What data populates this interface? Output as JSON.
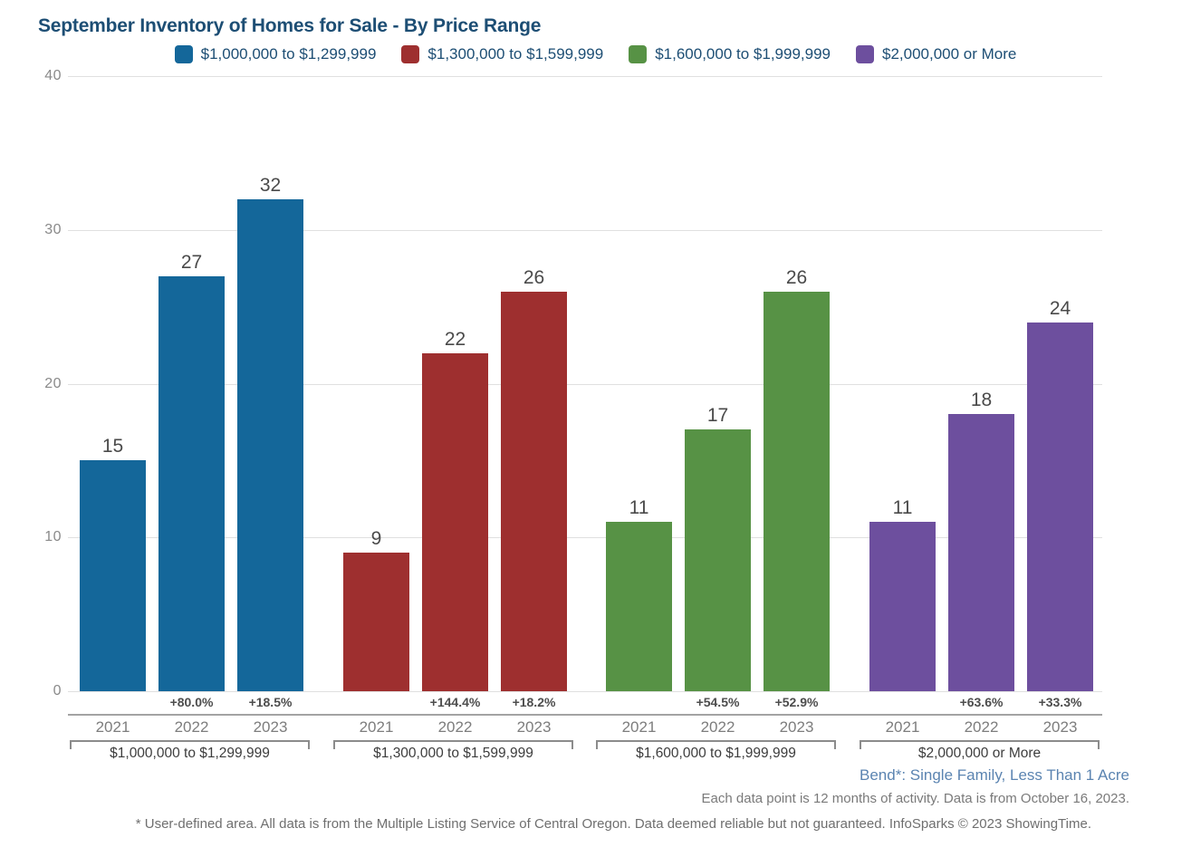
{
  "chart_data": {
    "type": "bar",
    "title": "September Inventory of Homes for Sale - By Price Range",
    "xlabel": "",
    "ylabel": "",
    "ylim": [
      0,
      40
    ],
    "yticks": [
      0,
      10,
      20,
      30,
      40
    ],
    "grid": true,
    "legend_position": "top-center",
    "categories": [
      "2021",
      "2022",
      "2023"
    ],
    "groups": [
      {
        "label": "$1,000,000 to $1,299,999",
        "color": "#14679A",
        "values": [
          15,
          27,
          32
        ],
        "pct_change": [
          "",
          "+80.0%",
          "+18.5%"
        ]
      },
      {
        "label": "$1,300,000 to $1,599,999",
        "color": "#9E2F2F",
        "values": [
          9,
          22,
          26
        ],
        "pct_change": [
          "",
          "+144.4%",
          "+18.2%"
        ]
      },
      {
        "label": "$1,600,000 to $1,999,999",
        "color": "#579245",
        "values": [
          11,
          17,
          26
        ],
        "pct_change": [
          "",
          "+54.5%",
          "+52.9%"
        ]
      },
      {
        "label": "$2,000,000 or More",
        "color": "#6D4F9E",
        "values": [
          11,
          18,
          24
        ],
        "pct_change": [
          "",
          "+63.6%",
          "+33.3%"
        ]
      }
    ]
  },
  "footer": {
    "area_note": "Bend*: Single Family, Less Than 1 Acre",
    "data_note": "Each data point is 12 months of activity. Data is from October 16, 2023.",
    "disclaimer": "* User-defined area. All data is from the Multiple Listing Service of Central Oregon. Data deemed reliable but not guaranteed. InfoSparks © 2023 ShowingTime."
  }
}
